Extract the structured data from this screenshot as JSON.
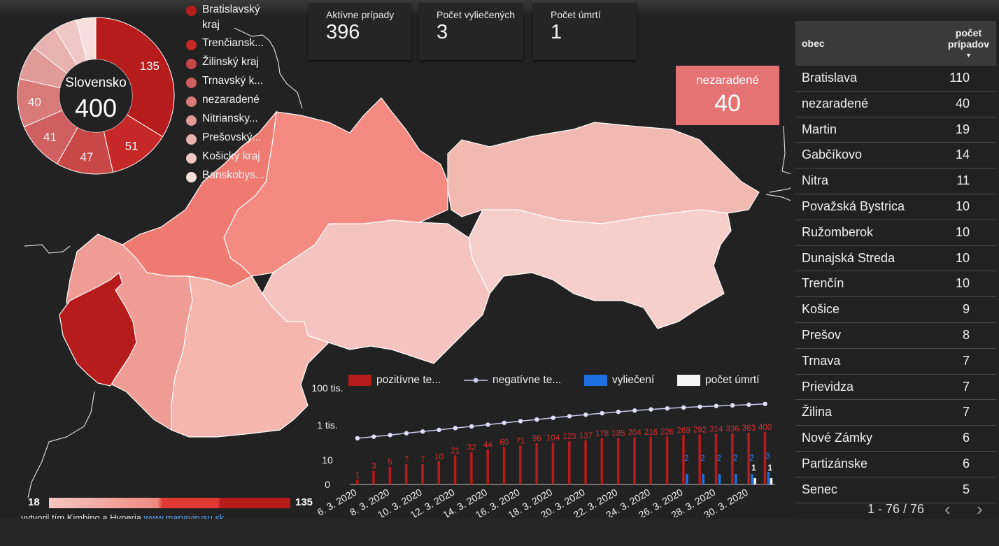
{
  "donut": {
    "center_label": "Slovensko",
    "center_value": "400",
    "slices": [
      {
        "name": "Bratislavský kraj",
        "value": 135,
        "color": "#b71c1c"
      },
      {
        "name": "Trenčiansky kraj",
        "value": 51,
        "color": "#c62828"
      },
      {
        "name": "Žilinský kraj",
        "value": 47,
        "color": "#c84848"
      },
      {
        "name": "Trnavský kraj",
        "value": 41,
        "color": "#d05f5f"
      },
      {
        "name": "nezaradené",
        "value": 40,
        "color": "#d77a78"
      },
      {
        "name": "Nitriansky kraj",
        "value": 28,
        "color": "#e09a98"
      },
      {
        "name": "Prešovský kraj",
        "value": 23,
        "color": "#e8b2b0"
      },
      {
        "name": "Košický kraj",
        "value": 19,
        "color": "#efc8c6"
      },
      {
        "name": "Banskobystrický kraj",
        "value": 16,
        "color": "#f6dedd"
      }
    ],
    "labels": [
      "135",
      "51",
      "47",
      "41",
      "40"
    ]
  },
  "legend": [
    {
      "label": "Bratislavský kraj",
      "color": "#b71c1c"
    },
    {
      "label": "Trenčiansk...",
      "color": "#c62828"
    },
    {
      "label": "Žilinský kraj",
      "color": "#c84848"
    },
    {
      "label": "Trnavský k...",
      "color": "#d05f5f"
    },
    {
      "label": "nezaradené",
      "color": "#d77a78"
    },
    {
      "label": "Nitriansky...",
      "color": "#e09a98"
    },
    {
      "label": "Prešovský...",
      "color": "#e8b2b0"
    },
    {
      "label": "Košický kraj",
      "color": "#efc8c6"
    },
    {
      "label": "Banskobys...",
      "color": "#f6dedd"
    }
  ],
  "kpis": {
    "active_label": "Aktívne prípady",
    "active_value": "396",
    "healed_label": "Počet vyliečených",
    "healed_value": "3",
    "deaths_label": "Počet úmrtí",
    "deaths_value": "1"
  },
  "unassigned": {
    "label": "nezaradené",
    "value": "40"
  },
  "table": {
    "col_obec": "obec",
    "col_count_line1": "počet",
    "col_count_line2": "prípadov",
    "sort_icon": "▼",
    "rows": [
      {
        "obec": "Bratislava",
        "count": "110"
      },
      {
        "obec": "nezaradené",
        "count": "40"
      },
      {
        "obec": "Martin",
        "count": "19"
      },
      {
        "obec": "Gabčíkovo",
        "count": "14"
      },
      {
        "obec": "Nitra",
        "count": "11"
      },
      {
        "obec": "Považská Bystrica",
        "count": "10"
      },
      {
        "obec": "Ružomberok",
        "count": "10"
      },
      {
        "obec": "Dunajská Streda",
        "count": "10"
      },
      {
        "obec": "Trenčín",
        "count": "10"
      },
      {
        "obec": "Košice",
        "count": "9"
      },
      {
        "obec": "Prešov",
        "count": "8"
      },
      {
        "obec": "Trnava",
        "count": "7"
      },
      {
        "obec": "Prievidza",
        "count": "7"
      },
      {
        "obec": "Žilina",
        "count": "7"
      },
      {
        "obec": "Nové Zámky",
        "count": "6"
      },
      {
        "obec": "Partizánske",
        "count": "6"
      },
      {
        "obec": "Senec",
        "count": "5"
      }
    ],
    "pager": "1 - 76 / 76",
    "prev_icon": "‹",
    "next_icon": "›"
  },
  "map_scale": {
    "min": "18",
    "max": "135"
  },
  "map_colors": {
    "bratislava": "#b71c1c",
    "trnava": "#ee9c94",
    "trencin": "#ef7a72",
    "zilina": "#f38b82",
    "nitra": "#f4b6ae",
    "bbystrica": "#f4c4c0",
    "presov": "#f2b8b2",
    "kosice": "#f6cfcb",
    "outline": "#ffffff"
  },
  "credit": {
    "text": "vytvoril tím Kimbino a Hyperia ",
    "link": "www.mapavirusu.sk"
  },
  "chart_legend": {
    "positive": "pozitívne te...",
    "negative": "negatívne te...",
    "healed": "vyliečení",
    "deaths": "počet úmrtí",
    "positive_color": "#b71c1c",
    "negative_color": "#c7c9ee",
    "healed_color": "#1e6fe0",
    "deaths_color": "#f5f5f5"
  },
  "chart_data": {
    "type": "bar",
    "y_ticks": [
      "100 tis.",
      "1 tis.",
      "10",
      "0"
    ],
    "x_tick_labels": [
      "6. 3. 2020",
      "8. 3. 2020",
      "10. 3. 2020",
      "12. 3. 2020",
      "14. 3. 2020",
      "16. 3. 2020",
      "18. 3. 2020",
      "20. 3. 2020",
      "22. 3. 2020",
      "24. 3. 2020",
      "26. 3. 2020",
      "28. 3. 2020",
      "30. 3. 2020"
    ],
    "categories": [
      "6. 3.",
      "7. 3.",
      "8. 3.",
      "9. 3.",
      "10. 3.",
      "11. 3.",
      "12. 3.",
      "13. 3.",
      "14. 3.",
      "15. 3.",
      "16. 3.",
      "17. 3.",
      "18. 3.",
      "19. 3.",
      "20. 3.",
      "21. 3.",
      "22. 3.",
      "23. 3.",
      "24. 3.",
      "25. 3.",
      "26. 3.",
      "27. 3.",
      "28. 3.",
      "29. 3.",
      "30. 3.",
      "31. 3."
    ],
    "series": [
      {
        "name": "pozitívne te...",
        "values": [
          1,
          3,
          5,
          7,
          7,
          10,
          21,
          32,
          44,
          60,
          71,
          96,
          104,
          123,
          137,
          178,
          185,
          204,
          216,
          226,
          269,
          292,
          314,
          336,
          363,
          400
        ]
      },
      {
        "name": "negatívne te...",
        "values": [
          180,
          220,
          270,
          340,
          420,
          520,
          650,
          800,
          1000,
          1250,
          1550,
          1900,
          2350,
          2900,
          3500,
          4200,
          5000,
          5900,
          6800,
          7700,
          8600,
          9500,
          10400,
          11300,
          12300,
          13500
        ]
      },
      {
        "name": "vyliečení",
        "values": [
          0,
          0,
          0,
          0,
          0,
          0,
          0,
          0,
          0,
          0,
          0,
          0,
          0,
          0,
          0,
          0,
          0,
          0,
          0,
          0,
          2,
          2,
          2,
          2,
          2,
          3
        ]
      },
      {
        "name": "počet úmrtí",
        "values": [
          0,
          0,
          0,
          0,
          0,
          0,
          0,
          0,
          0,
          0,
          0,
          0,
          0,
          0,
          0,
          0,
          0,
          0,
          0,
          0,
          0,
          0,
          0,
          0,
          1,
          1
        ]
      }
    ],
    "positive_labels": [
      "1",
      "3",
      "5",
      "7",
      "7",
      "10",
      "21",
      "32",
      "44",
      "60",
      "71",
      "96",
      "104",
      "123",
      "137",
      "178",
      "185",
      "204",
      "216",
      "226",
      "269",
      "292",
      "314",
      "336",
      "363",
      "400"
    ],
    "healed_labels": [
      "",
      "",
      "",
      "",
      "",
      "",
      "",
      "",
      "",
      "",
      "",
      "",
      "",
      "",
      "",
      "",
      "",
      "",
      "",
      "",
      "2",
      "2",
      "2",
      "2",
      "2",
      "3"
    ],
    "death_labels": [
      "",
      "",
      "",
      "",
      "",
      "",
      "",
      "",
      "",
      "",
      "",
      "",
      "",
      "",
      "",
      "",
      "",
      "",
      "",
      "",
      "",
      "",
      "",
      "",
      "1",
      "1"
    ],
    "yscale": "log"
  }
}
